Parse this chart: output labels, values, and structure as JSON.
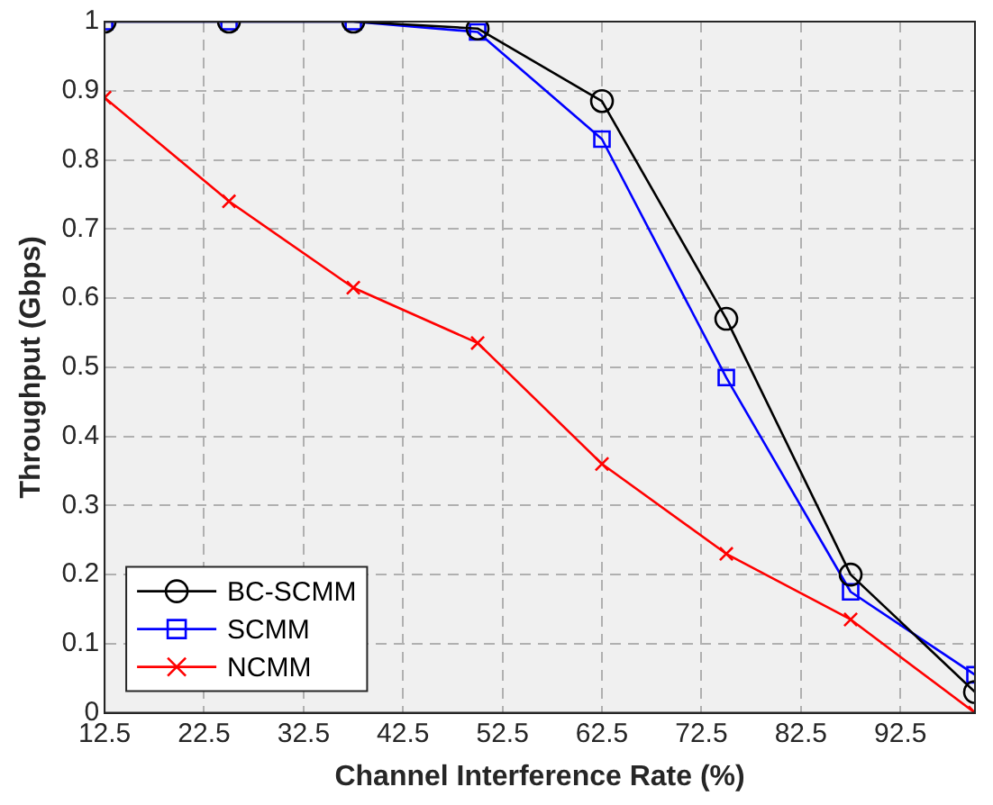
{
  "chart_data": {
    "type": "line",
    "xlabel": "Channel Interference Rate (%)",
    "ylabel": "Throughput (Gbps)",
    "x": [
      12.5,
      25,
      37.5,
      50,
      62.5,
      75,
      87.5,
      100
    ],
    "series": [
      {
        "name": "BC-SCMM",
        "color": "#000000",
        "marker": "circle",
        "values": [
          1,
          1,
          1,
          0.99,
          0.885,
          0.57,
          0.2,
          0.03
        ]
      },
      {
        "name": "SCMM",
        "color": "#0000ff",
        "marker": "square",
        "values": [
          1,
          1,
          1,
          0.985,
          0.83,
          0.485,
          0.175,
          0.055
        ]
      },
      {
        "name": "NCMM",
        "color": "#ff0000",
        "marker": "cross",
        "values": [
          0.89,
          0.74,
          0.615,
          0.535,
          0.36,
          0.23,
          0.135,
          0
        ]
      }
    ],
    "xlim": [
      12.5,
      100
    ],
    "xticks": [
      12.5,
      22.5,
      32.5,
      42.5,
      52.5,
      62.5,
      72.5,
      82.5,
      92.5
    ],
    "ylim": [
      0,
      1
    ],
    "yticks": [
      0,
      0.1,
      0.2,
      0.3,
      0.4,
      0.5,
      0.6,
      0.7,
      0.8,
      0.9,
      1
    ],
    "grid": true,
    "legend": "bottom left",
    "line_style": "solid"
  }
}
